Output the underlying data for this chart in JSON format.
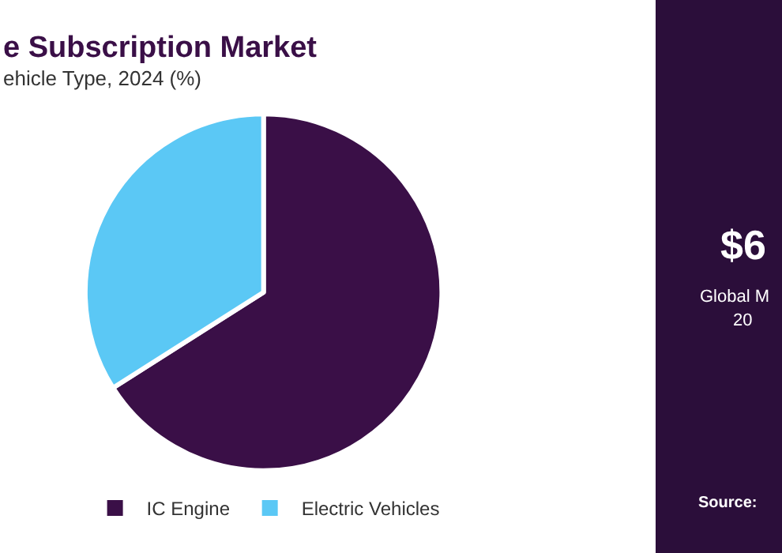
{
  "chart_data": {
    "type": "pie",
    "title": "e Subscription Market",
    "subtitle": "ehicle Type, 2024 (%)",
    "categories": [
      "IC Engine",
      "Electric Vehicles"
    ],
    "values": [
      66,
      34
    ],
    "colors": [
      "#3a0f47",
      "#5bc8f5"
    ],
    "legend": "bottom",
    "annotations": [
      "$6",
      "Global M",
      "20",
      "Source:"
    ]
  }
}
